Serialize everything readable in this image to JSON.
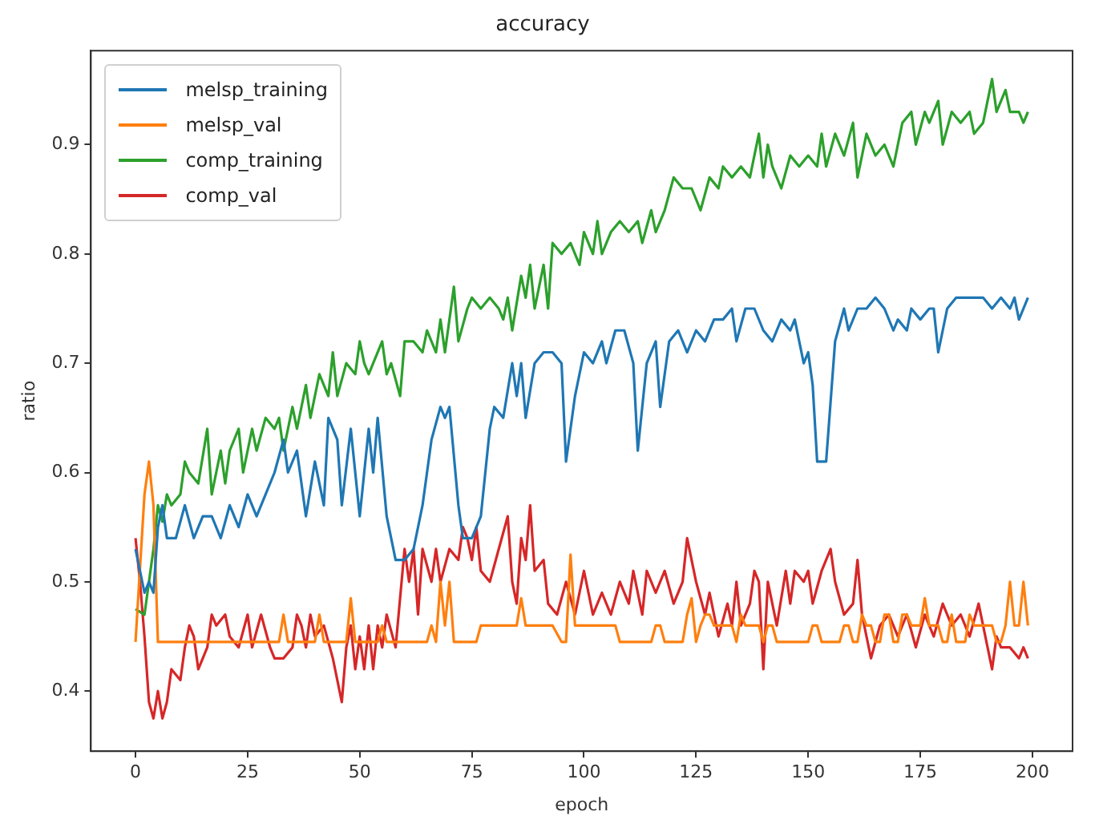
{
  "chart_data": {
    "type": "line",
    "title": "accuracy",
    "xlabel": "epoch",
    "ylabel": "ratio",
    "legend": "top left",
    "grid": false,
    "xlim": [
      -9.95,
      208.95
    ],
    "xticks": [
      0,
      25,
      50,
      75,
      100,
      125,
      150,
      175,
      200
    ],
    "ylim": [
      0.345,
      0.986
    ],
    "yticks": [
      0.4,
      0.5,
      0.6,
      0.7,
      0.8,
      0.9
    ],
    "series": [
      {
        "name": "melsp_training",
        "color": "#1f77b4",
        "x": [
          0,
          2,
          3,
          4,
          5,
          6,
          7,
          9,
          11,
          13,
          15,
          17,
          19,
          21,
          23,
          25,
          27,
          29,
          31,
          33,
          34,
          36,
          38,
          40,
          42,
          43,
          45,
          46,
          48,
          50,
          52,
          53,
          54,
          56,
          58,
          60,
          62,
          64,
          66,
          68,
          69,
          70,
          72,
          73,
          75,
          77,
          79,
          80,
          82,
          84,
          85,
          86,
          87,
          89,
          91,
          93,
          95,
          96,
          98,
          100,
          102,
          104,
          105,
          107,
          109,
          111,
          112,
          114,
          116,
          117,
          119,
          121,
          123,
          125,
          127,
          129,
          131,
          133,
          134,
          136,
          138,
          140,
          142,
          144,
          146,
          147,
          149,
          150,
          151,
          152,
          154,
          156,
          158,
          159,
          161,
          163,
          165,
          167,
          169,
          170,
          172,
          173,
          175,
          177,
          178,
          179,
          181,
          183,
          185,
          187,
          189,
          191,
          193,
          195,
          196,
          197,
          198,
          199
        ],
        "values": [
          0.53,
          0.49,
          0.5,
          0.49,
          0.55,
          0.57,
          0.54,
          0.54,
          0.57,
          0.54,
          0.56,
          0.56,
          0.54,
          0.57,
          0.55,
          0.58,
          0.56,
          0.58,
          0.6,
          0.63,
          0.6,
          0.62,
          0.56,
          0.61,
          0.57,
          0.65,
          0.63,
          0.57,
          0.64,
          0.56,
          0.64,
          0.6,
          0.65,
          0.56,
          0.52,
          0.52,
          0.53,
          0.57,
          0.63,
          0.66,
          0.65,
          0.66,
          0.57,
          0.54,
          0.54,
          0.56,
          0.64,
          0.66,
          0.65,
          0.7,
          0.67,
          0.7,
          0.65,
          0.7,
          0.71,
          0.71,
          0.7,
          0.61,
          0.67,
          0.71,
          0.7,
          0.72,
          0.7,
          0.73,
          0.73,
          0.7,
          0.62,
          0.7,
          0.72,
          0.66,
          0.72,
          0.73,
          0.71,
          0.73,
          0.72,
          0.74,
          0.74,
          0.75,
          0.72,
          0.75,
          0.75,
          0.73,
          0.72,
          0.74,
          0.73,
          0.74,
          0.7,
          0.71,
          0.68,
          0.61,
          0.61,
          0.72,
          0.75,
          0.73,
          0.75,
          0.75,
          0.76,
          0.75,
          0.73,
          0.74,
          0.73,
          0.75,
          0.74,
          0.75,
          0.75,
          0.71,
          0.75,
          0.76,
          0.76,
          0.76,
          0.76,
          0.75,
          0.76,
          0.75,
          0.76,
          0.74,
          0.75,
          0.76
        ]
      },
      {
        "name": "melsp_val",
        "color": "#ff7f0e",
        "x": [
          0,
          2,
          3,
          4,
          5,
          32,
          33,
          34,
          40,
          41,
          42,
          47,
          48,
          49,
          54,
          55,
          56,
          65,
          66,
          67,
          68,
          69,
          70,
          71,
          76,
          77,
          85,
          86,
          87,
          93,
          95,
          96,
          97,
          98,
          107,
          108,
          115,
          116,
          117,
          118,
          122,
          123,
          124,
          125,
          126,
          127,
          128,
          129,
          133,
          134,
          135,
          136,
          139,
          140,
          141,
          142,
          143,
          150,
          151,
          152,
          153,
          157,
          158,
          159,
          160,
          161,
          162,
          163,
          164,
          165,
          166,
          167,
          168,
          169,
          170,
          171,
          172,
          173,
          175,
          176,
          177,
          179,
          180,
          181,
          182,
          183,
          185,
          186,
          187,
          191,
          192,
          193,
          194,
          195,
          196,
          197,
          198,
          199
        ],
        "values": [
          0.445,
          0.58,
          0.61,
          0.57,
          0.445,
          0.445,
          0.47,
          0.445,
          0.445,
          0.47,
          0.445,
          0.445,
          0.485,
          0.445,
          0.445,
          0.46,
          0.445,
          0.445,
          0.46,
          0.445,
          0.5,
          0.46,
          0.5,
          0.445,
          0.445,
          0.46,
          0.46,
          0.485,
          0.46,
          0.46,
          0.445,
          0.445,
          0.525,
          0.46,
          0.46,
          0.445,
          0.445,
          0.46,
          0.46,
          0.445,
          0.445,
          0.47,
          0.485,
          0.445,
          0.46,
          0.47,
          0.47,
          0.46,
          0.46,
          0.445,
          0.47,
          0.46,
          0.46,
          0.445,
          0.46,
          0.46,
          0.445,
          0.445,
          0.46,
          0.46,
          0.445,
          0.445,
          0.46,
          0.46,
          0.445,
          0.445,
          0.47,
          0.46,
          0.46,
          0.445,
          0.445,
          0.47,
          0.47,
          0.445,
          0.445,
          0.47,
          0.47,
          0.46,
          0.46,
          0.485,
          0.46,
          0.46,
          0.445,
          0.445,
          0.47,
          0.445,
          0.445,
          0.47,
          0.46,
          0.46,
          0.445,
          0.445,
          0.46,
          0.5,
          0.46,
          0.46,
          0.5,
          0.46
        ]
      },
      {
        "name": "comp_training",
        "color": "#2ca02c",
        "x": [
          0,
          2,
          4,
          5,
          6,
          7,
          8,
          10,
          11,
          12,
          14,
          16,
          17,
          19,
          20,
          21,
          23,
          24,
          26,
          27,
          29,
          31,
          32,
          33,
          35,
          36,
          38,
          39,
          41,
          43,
          44,
          45,
          47,
          49,
          50,
          51,
          52,
          53,
          55,
          56,
          57,
          59,
          60,
          62,
          64,
          65,
          67,
          68,
          69,
          71,
          72,
          74,
          75,
          77,
          79,
          81,
          82,
          83,
          84,
          86,
          87,
          88,
          89,
          91,
          92,
          93,
          95,
          97,
          99,
          100,
          102,
          103,
          104,
          106,
          108,
          110,
          112,
          113,
          115,
          116,
          118,
          120,
          122,
          124,
          126,
          128,
          130,
          131,
          133,
          135,
          137,
          139,
          140,
          141,
          142,
          144,
          146,
          148,
          150,
          152,
          153,
          154,
          156,
          158,
          160,
          161,
          163,
          165,
          167,
          169,
          171,
          173,
          174,
          176,
          177,
          179,
          180,
          182,
          184,
          186,
          187,
          189,
          191,
          192,
          194,
          195,
          197,
          198,
          199
        ],
        "values": [
          0.475,
          0.47,
          0.53,
          0.57,
          0.555,
          0.58,
          0.57,
          0.58,
          0.61,
          0.6,
          0.59,
          0.64,
          0.58,
          0.62,
          0.59,
          0.62,
          0.64,
          0.6,
          0.64,
          0.62,
          0.65,
          0.64,
          0.65,
          0.62,
          0.66,
          0.64,
          0.68,
          0.65,
          0.69,
          0.67,
          0.71,
          0.67,
          0.7,
          0.69,
          0.72,
          0.7,
          0.69,
          0.7,
          0.72,
          0.69,
          0.7,
          0.67,
          0.72,
          0.72,
          0.71,
          0.73,
          0.71,
          0.74,
          0.71,
          0.77,
          0.72,
          0.75,
          0.76,
          0.75,
          0.76,
          0.75,
          0.74,
          0.76,
          0.73,
          0.78,
          0.76,
          0.79,
          0.75,
          0.79,
          0.75,
          0.81,
          0.8,
          0.81,
          0.79,
          0.82,
          0.8,
          0.83,
          0.8,
          0.82,
          0.83,
          0.82,
          0.83,
          0.81,
          0.84,
          0.82,
          0.84,
          0.87,
          0.86,
          0.86,
          0.84,
          0.87,
          0.86,
          0.88,
          0.87,
          0.88,
          0.87,
          0.91,
          0.87,
          0.9,
          0.88,
          0.86,
          0.89,
          0.88,
          0.89,
          0.88,
          0.91,
          0.88,
          0.91,
          0.89,
          0.92,
          0.87,
          0.91,
          0.89,
          0.9,
          0.88,
          0.92,
          0.93,
          0.9,
          0.93,
          0.92,
          0.94,
          0.9,
          0.93,
          0.92,
          0.93,
          0.91,
          0.92,
          0.96,
          0.93,
          0.95,
          0.93,
          0.93,
          0.92,
          0.93
        ]
      },
      {
        "name": "comp_val",
        "color": "#d62728",
        "x": [
          0,
          1,
          2,
          3,
          4,
          5,
          6,
          7,
          8,
          10,
          11,
          12,
          13,
          14,
          16,
          17,
          18,
          20,
          21,
          23,
          25,
          26,
          28,
          30,
          31,
          33,
          35,
          36,
          37,
          38,
          39,
          40,
          42,
          44,
          46,
          47,
          48,
          49,
          50,
          51,
          52,
          53,
          54,
          55,
          56,
          58,
          60,
          61,
          62,
          63,
          64,
          66,
          67,
          68,
          70,
          72,
          73,
          74,
          75,
          76,
          77,
          79,
          81,
          83,
          84,
          85,
          86,
          87,
          88,
          89,
          91,
          92,
          94,
          96,
          98,
          100,
          102,
          104,
          106,
          108,
          110,
          111,
          113,
          114,
          116,
          118,
          120,
          122,
          123,
          125,
          127,
          128,
          130,
          132,
          133,
          134,
          135,
          137,
          138,
          139,
          140,
          141,
          143,
          145,
          146,
          147,
          149,
          150,
          151,
          153,
          155,
          156,
          158,
          160,
          161,
          162,
          164,
          166,
          168,
          170,
          172,
          174,
          176,
          178,
          180,
          182,
          184,
          186,
          188,
          190,
          191,
          192,
          193,
          195,
          197,
          198,
          199
        ],
        "values": [
          0.54,
          0.5,
          0.45,
          0.39,
          0.375,
          0.4,
          0.375,
          0.39,
          0.42,
          0.41,
          0.44,
          0.46,
          0.45,
          0.42,
          0.44,
          0.47,
          0.46,
          0.47,
          0.45,
          0.44,
          0.47,
          0.44,
          0.47,
          0.44,
          0.43,
          0.43,
          0.44,
          0.47,
          0.46,
          0.44,
          0.47,
          0.45,
          0.46,
          0.43,
          0.39,
          0.44,
          0.46,
          0.42,
          0.45,
          0.42,
          0.46,
          0.42,
          0.46,
          0.44,
          0.47,
          0.44,
          0.53,
          0.5,
          0.53,
          0.47,
          0.53,
          0.5,
          0.53,
          0.5,
          0.53,
          0.52,
          0.55,
          0.54,
          0.52,
          0.55,
          0.51,
          0.5,
          0.53,
          0.56,
          0.5,
          0.48,
          0.54,
          0.52,
          0.57,
          0.51,
          0.52,
          0.48,
          0.47,
          0.5,
          0.47,
          0.51,
          0.47,
          0.49,
          0.47,
          0.5,
          0.48,
          0.51,
          0.47,
          0.51,
          0.49,
          0.51,
          0.48,
          0.5,
          0.54,
          0.5,
          0.47,
          0.49,
          0.45,
          0.48,
          0.46,
          0.5,
          0.46,
          0.48,
          0.51,
          0.5,
          0.42,
          0.5,
          0.46,
          0.51,
          0.48,
          0.51,
          0.5,
          0.51,
          0.48,
          0.51,
          0.53,
          0.5,
          0.47,
          0.48,
          0.52,
          0.47,
          0.43,
          0.46,
          0.47,
          0.45,
          0.47,
          0.44,
          0.47,
          0.45,
          0.48,
          0.46,
          0.47,
          0.45,
          0.48,
          0.44,
          0.42,
          0.45,
          0.44,
          0.44,
          0.43,
          0.44,
          0.43
        ]
      }
    ]
  }
}
